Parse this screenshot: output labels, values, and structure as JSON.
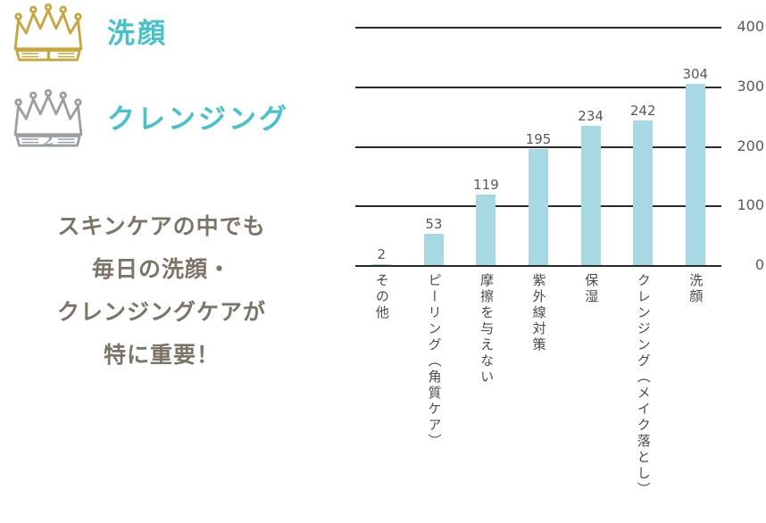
{
  "colors": {
    "accent_teal": "#45c2cb",
    "message_text": "#7d7468",
    "bar_fill": "#a6d9e3",
    "grid_line": "#2a2a2a",
    "axis_text": "#595959",
    "gold": "#c9a63c",
    "silver": "#9b9fa3"
  },
  "ranking": {
    "items": [
      {
        "rank": "1",
        "label": "洗顔",
        "crown_color": "#c9a63c"
      },
      {
        "rank": "2",
        "label": "クレンジング",
        "crown_color": "#9b9fa3"
      }
    ]
  },
  "message": {
    "lines": [
      "スキンケアの中でも",
      "毎日の洗顔・",
      "クレンジングケアが",
      "特に重要！"
    ]
  },
  "chart_data": {
    "type": "bar",
    "title": "",
    "xlabel": "",
    "ylabel": "",
    "categories": [
      "その他",
      "ピーリング（角質ケア）",
      "摩擦を与えない",
      "紫外線対策",
      "保湿",
      "クレンジング（メイク落とし）",
      "洗顔"
    ],
    "values": [
      2,
      53,
      119,
      195,
      234,
      242,
      304
    ],
    "ylim": [
      0,
      400
    ],
    "yticks": [
      0,
      100,
      200,
      300,
      400
    ],
    "grid": true,
    "legend": "none",
    "bar_color": "#a6d9e3",
    "value_labels": true,
    "ytick_side": "right"
  }
}
